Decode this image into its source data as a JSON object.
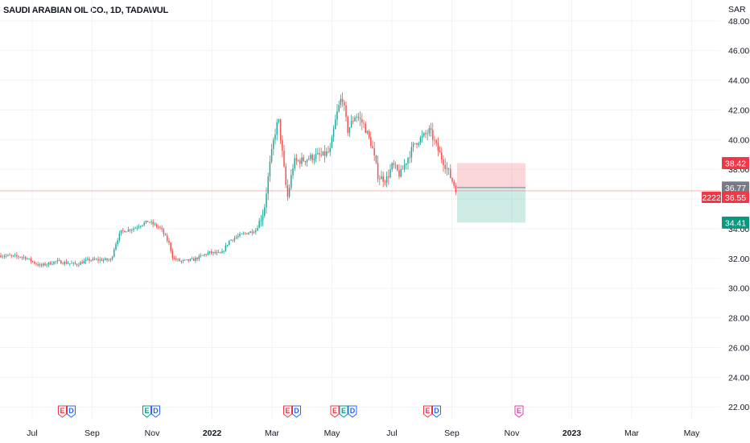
{
  "header": {
    "title": "SAUDI ARABIAN OIL CO., 1D, TADAWUL"
  },
  "chart_data": {
    "type": "candlestick",
    "currency": "SAR",
    "ylim": [
      21.2,
      49.4
    ],
    "y_ticks": [
      "22.00",
      "24.00",
      "26.00",
      "28.00",
      "30.00",
      "32.00",
      "34.00",
      "36.00",
      "38.00",
      "40.00",
      "42.00",
      "44.00",
      "46.00",
      "48.00"
    ],
    "x_ticks": [
      {
        "label": "Jul",
        "bold": false
      },
      {
        "label": "Sep",
        "bold": false
      },
      {
        "label": "Nov",
        "bold": false
      },
      {
        "label": "2022",
        "bold": true
      },
      {
        "label": "Mar",
        "bold": false
      },
      {
        "label": "May",
        "bold": false
      },
      {
        "label": "Jul",
        "bold": false
      },
      {
        "label": "Sep",
        "bold": false
      },
      {
        "label": "Nov",
        "bold": false
      },
      {
        "label": "2023",
        "bold": true
      },
      {
        "label": "Mar",
        "bold": false
      },
      {
        "label": "May",
        "bold": false
      }
    ],
    "price_path": [
      [
        0,
        32.2
      ],
      [
        30,
        32.1
      ],
      [
        50,
        31.5
      ],
      [
        70,
        31.8
      ],
      [
        95,
        31.6
      ],
      [
        110,
        31.9
      ],
      [
        138,
        31.9
      ],
      [
        143,
        32.9
      ],
      [
        150,
        33.8
      ],
      [
        165,
        34.0
      ],
      [
        184,
        34.5
      ],
      [
        200,
        34.0
      ],
      [
        210,
        33.0
      ],
      [
        215,
        32.0
      ],
      [
        225,
        31.8
      ],
      [
        240,
        31.9
      ],
      [
        260,
        32.4
      ],
      [
        275,
        32.3
      ],
      [
        285,
        33.2
      ],
      [
        300,
        33.6
      ],
      [
        318,
        33.9
      ],
      [
        328,
        35.2
      ],
      [
        335,
        38.2
      ],
      [
        341,
        40.3
      ],
      [
        346,
        41.4
      ],
      [
        352,
        38.5
      ],
      [
        357,
        36.0
      ],
      [
        365,
        38.5
      ],
      [
        375,
        38.6
      ],
      [
        392,
        38.9
      ],
      [
        400,
        38.9
      ],
      [
        410,
        39.2
      ],
      [
        418,
        41.6
      ],
      [
        425,
        43.0
      ],
      [
        432,
        40.6
      ],
      [
        442,
        41.7
      ],
      [
        452,
        41.0
      ],
      [
        462,
        39.6
      ],
      [
        470,
        37.5
      ],
      [
        480,
        37.3
      ],
      [
        488,
        38.3
      ],
      [
        497,
        37.6
      ],
      [
        506,
        38.7
      ],
      [
        516,
        39.8
      ],
      [
        526,
        40.2
      ],
      [
        534,
        40.6
      ],
      [
        545,
        39.2
      ],
      [
        555,
        38.1
      ],
      [
        563,
        37.1
      ],
      [
        568,
        36.55
      ]
    ],
    "current_price": "36.55",
    "current_price_time": "2222",
    "level_close": "36.77",
    "stop_loss": "38.42",
    "take_profit": "34.41",
    "events": [
      {
        "x": 83,
        "badges": [
          "E",
          "D"
        ]
      },
      {
        "x": 188,
        "badges": [
          "E",
          "D"
        ]
      },
      {
        "x": 363,
        "badges": [
          "E",
          "D"
        ]
      },
      {
        "x": 427,
        "badges": [
          "E",
          "E",
          "D"
        ]
      },
      {
        "x": 537,
        "badges": [
          "E",
          "D"
        ]
      },
      {
        "x": 645,
        "badges": [
          "E"
        ]
      }
    ]
  },
  "colors": {
    "up": "#26a69a",
    "down": "#ef5350",
    "tag_red": "#f23645",
    "tag_grey": "#787b86",
    "tag_green": "#089981",
    "stop_zone": "rgba(242,54,69,0.2)",
    "target_zone": "rgba(8,153,129,0.2)",
    "event_red": "#f23645",
    "event_green": "#089981",
    "event_blue": "#2962ff",
    "event_pink": "#e040a0"
  }
}
